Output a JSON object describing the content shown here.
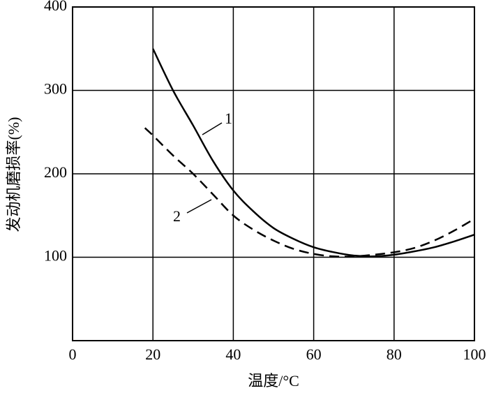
{
  "chart_data": {
    "type": "line",
    "xlabel": "温度/°C",
    "ylabel": "发动机磨损率(%)",
    "xlim": [
      0,
      100
    ],
    "xticks": [
      0,
      20,
      40,
      60,
      80,
      100
    ],
    "ylim": [
      0,
      400
    ],
    "yticks": [
      100,
      200,
      300,
      400
    ],
    "grid": true,
    "series": [
      {
        "name": "1",
        "color": "#000",
        "dash": false,
        "x": [
          20,
          25,
          30,
          35,
          40,
          45,
          50,
          55,
          60,
          65,
          70,
          75,
          80,
          85,
          90,
          95,
          100
        ],
        "values": [
          350,
          300,
          258,
          215,
          180,
          155,
          135,
          122,
          112,
          106,
          102,
          101,
          103,
          107,
          112,
          119,
          127
        ]
      },
      {
        "name": "2",
        "color": "#000",
        "dash": true,
        "x": [
          18,
          20,
          25,
          30,
          35,
          40,
          45,
          50,
          55,
          60,
          65,
          70,
          75,
          80,
          85,
          90,
          95,
          100
        ],
        "values": [
          255,
          246,
          222,
          200,
          175,
          150,
          133,
          120,
          110,
          104,
          101,
          101,
          103,
          106,
          111,
          120,
          132,
          146
        ]
      }
    ]
  }
}
